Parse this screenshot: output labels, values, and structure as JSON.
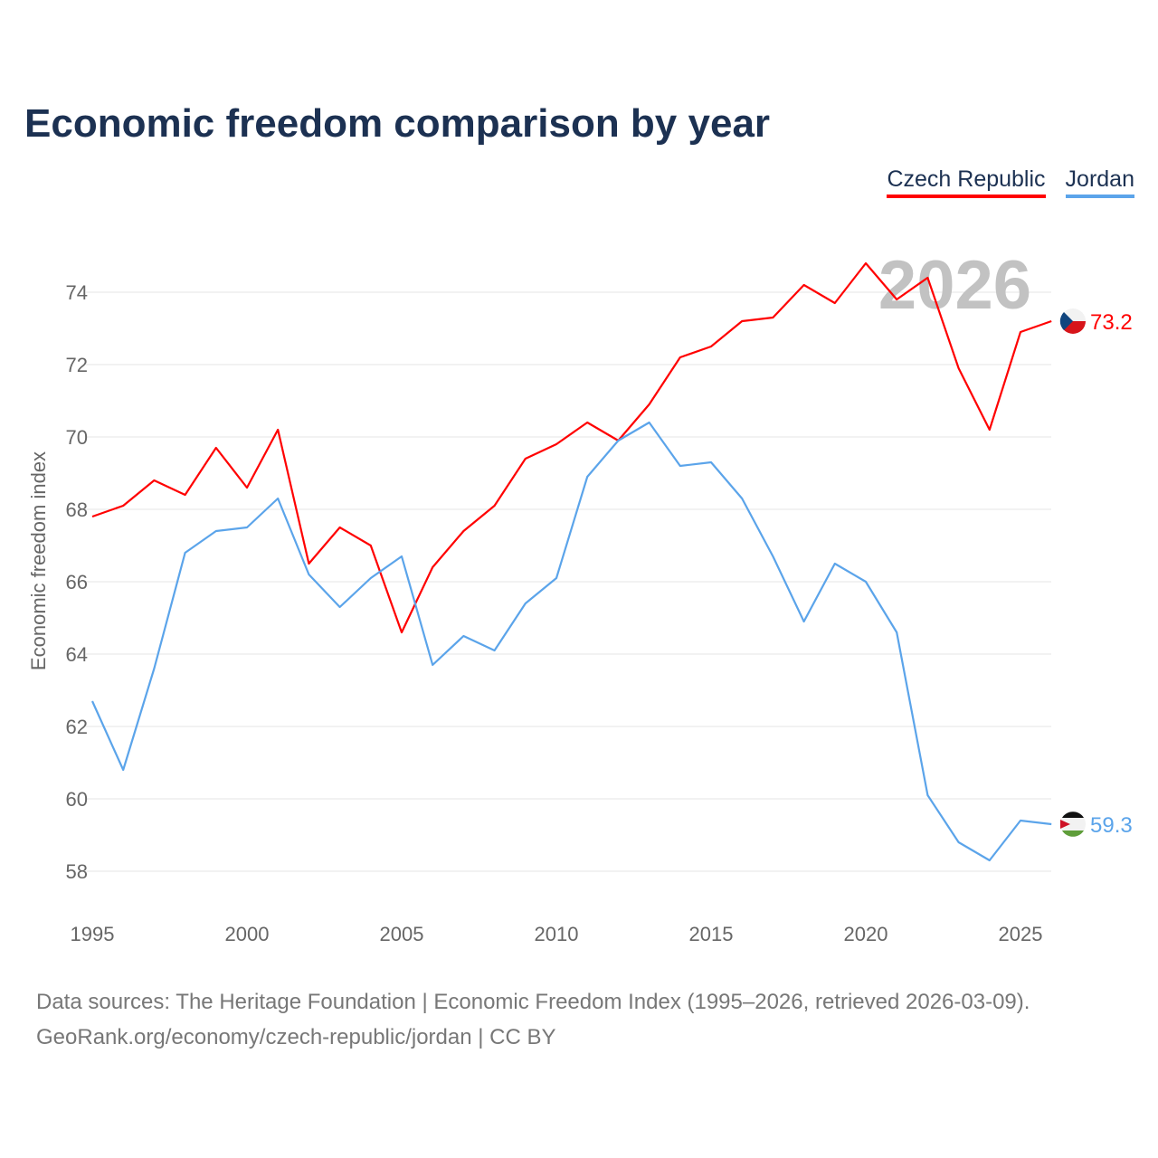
{
  "chart_data": {
    "type": "line",
    "title": "Economic freedom comparison by year",
    "xlabel": "",
    "ylabel": "Economic freedom index",
    "xlim": [
      1995,
      2026
    ],
    "ylim": [
      57,
      75.5
    ],
    "x_ticks": [
      "1995",
      "2000",
      "2005",
      "2010",
      "2015",
      "2020",
      "2025"
    ],
    "y_ticks": [
      "58",
      "60",
      "62",
      "64",
      "66",
      "68",
      "70",
      "72",
      "74"
    ],
    "grid": true,
    "legend_placement": "top-right",
    "year_watermark": "2026",
    "x": [
      1995,
      1996,
      1997,
      1998,
      1999,
      2000,
      2001,
      2002,
      2003,
      2004,
      2005,
      2006,
      2007,
      2008,
      2009,
      2010,
      2011,
      2012,
      2013,
      2014,
      2015,
      2016,
      2017,
      2018,
      2019,
      2020,
      2021,
      2022,
      2023,
      2024,
      2025,
      2026
    ],
    "series": [
      {
        "name": "Czech Republic",
        "color": "#ff0000",
        "end_label": "73.2",
        "values": [
          67.8,
          68.1,
          68.8,
          68.4,
          69.7,
          68.6,
          70.2,
          66.5,
          67.5,
          67.0,
          64.6,
          66.4,
          67.4,
          68.1,
          69.4,
          69.8,
          70.4,
          69.9,
          70.9,
          72.2,
          72.5,
          73.2,
          73.3,
          74.2,
          73.7,
          74.8,
          73.8,
          74.4,
          71.9,
          70.2,
          72.9,
          73.2
        ]
      },
      {
        "name": "Jordan",
        "color": "#5ba4ea",
        "end_label": "59.3",
        "values": [
          62.7,
          60.8,
          63.6,
          66.8,
          67.4,
          67.5,
          68.3,
          66.2,
          65.3,
          66.1,
          66.7,
          63.7,
          64.5,
          64.1,
          65.4,
          66.1,
          68.9,
          69.9,
          70.4,
          69.2,
          69.3,
          68.3,
          66.7,
          64.9,
          66.5,
          66.0,
          64.6,
          60.1,
          58.8,
          58.3,
          59.4,
          59.3
        ]
      }
    ]
  },
  "footer": {
    "line1": "Data sources: The Heritage Foundation | Economic Freedom Index (1995–2026, retrieved 2026-03-09).",
    "line2": "GeoRank.org/economy/czech-republic/jordan | CC BY"
  }
}
